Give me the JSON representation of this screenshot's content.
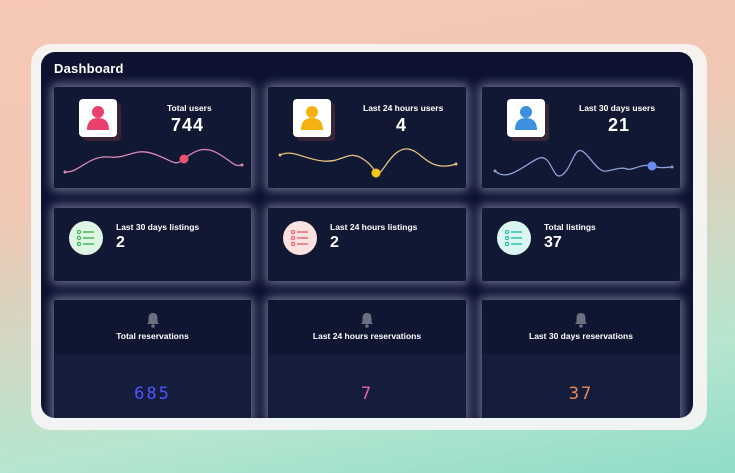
{
  "dashboard": {
    "title": "Dashboard",
    "user_stats": [
      {
        "label": "Total users",
        "value": "744",
        "icon": "user-icon",
        "color": "#e8416b",
        "line_color": "#d989b3",
        "point_color": "#e9536f"
      },
      {
        "label": "Last 24 hours users",
        "value": "4",
        "icon": "user-icon",
        "color": "#f5b10f",
        "line_color": "#e8c57f",
        "point_color": "#f5c518"
      },
      {
        "label": "Last 30 days users",
        "value": "21",
        "icon": "user-icon",
        "color": "#3d8fe0",
        "line_color": "#8ea0d8",
        "point_color": "#6a8cf0"
      }
    ],
    "listing_stats": [
      {
        "label": "Last 30 days listings",
        "value": "2",
        "icon": "list-icon",
        "bg": "#dff5e3",
        "color": "#36b556"
      },
      {
        "label": "Last 24 hours listings",
        "value": "2",
        "icon": "list-icon",
        "bg": "#fbe1e0",
        "color": "#e8606b"
      },
      {
        "label": "Total listings",
        "value": "37",
        "icon": "list-icon",
        "bg": "#d9f6f2",
        "color": "#28bca6"
      }
    ],
    "reservation_stats": [
      {
        "label": "Total reservations",
        "value": "685",
        "icon": "bell-icon",
        "color": "#4d55ff"
      },
      {
        "label": "Last 24 hours reservations",
        "value": "7",
        "icon": "bell-icon",
        "color": "#e95ea7"
      },
      {
        "label": "Last 30 days reservations",
        "value": "37",
        "icon": "bell-icon",
        "color": "#f3874f"
      }
    ]
  }
}
